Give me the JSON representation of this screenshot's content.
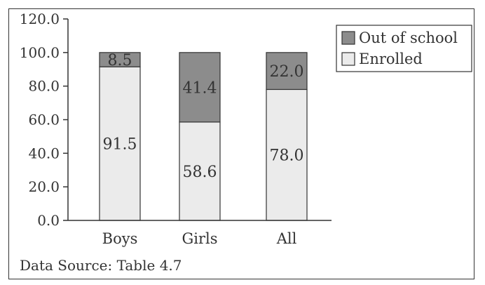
{
  "chart_data": {
    "type": "bar",
    "stacked": true,
    "categories": [
      "Boys",
      "Girls",
      "All"
    ],
    "series": [
      {
        "name": "Enrolled",
        "values": [
          91.5,
          58.6,
          78.0
        ],
        "color": "#ebebeb",
        "labels": [
          "91.5",
          "58.6",
          "78.0"
        ]
      },
      {
        "name": "Out of school",
        "values": [
          8.5,
          41.4,
          22.0
        ],
        "color": "#8c8c8c",
        "labels": [
          "8.5",
          "41.4",
          "22.0"
        ]
      }
    ],
    "ylim": [
      0,
      120
    ],
    "yticks": [
      "0.0",
      "20.0",
      "40.0",
      "60.0",
      "80.0",
      "100.0",
      "120.0"
    ],
    "legend_position": "top-right",
    "grid": false
  },
  "source_note": "Data Source: Table 4.7"
}
